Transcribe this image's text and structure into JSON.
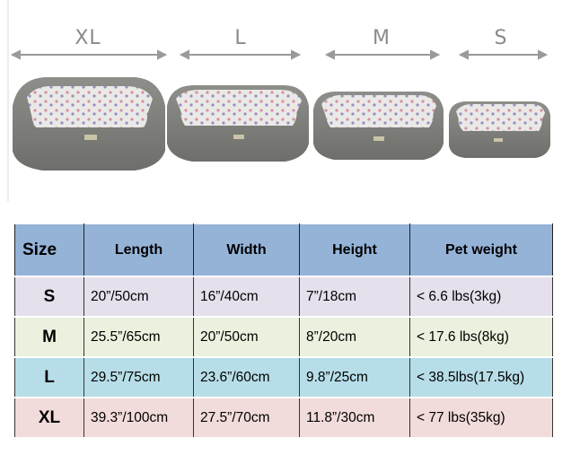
{
  "size_labels": [
    "XL",
    "L",
    "M",
    "S"
  ],
  "table": {
    "headers": [
      "Size",
      "Length",
      "Width",
      "Height",
      "Pet weight"
    ],
    "rows": [
      {
        "size": "S",
        "length": "20”/50cm",
        "width": "16”/40cm",
        "height": "7”/18cm",
        "weight": "< 6.6 lbs(3kg)",
        "color": "#e5e0ec"
      },
      {
        "size": "M",
        "length": "25.5”/65cm",
        "width": "20”/50cm",
        "height": "8”/20cm",
        "weight": "< 17.6 lbs(8kg)",
        "color": "#ebf1de"
      },
      {
        "size": "L",
        "length": "29.5”/75cm",
        "width": "23.6”/60cm",
        "height": "9.8”/25cm",
        "weight": "< 38.5lbs(17.5kg)",
        "color": "#b7dee8"
      },
      {
        "size": "XL",
        "length": "39.3”/100cm",
        "width": "27.5”/70cm",
        "height": "11.8”/30cm",
        "weight": "< 77 lbs(35kg)",
        "color": "#f2dcdb"
      }
    ]
  }
}
